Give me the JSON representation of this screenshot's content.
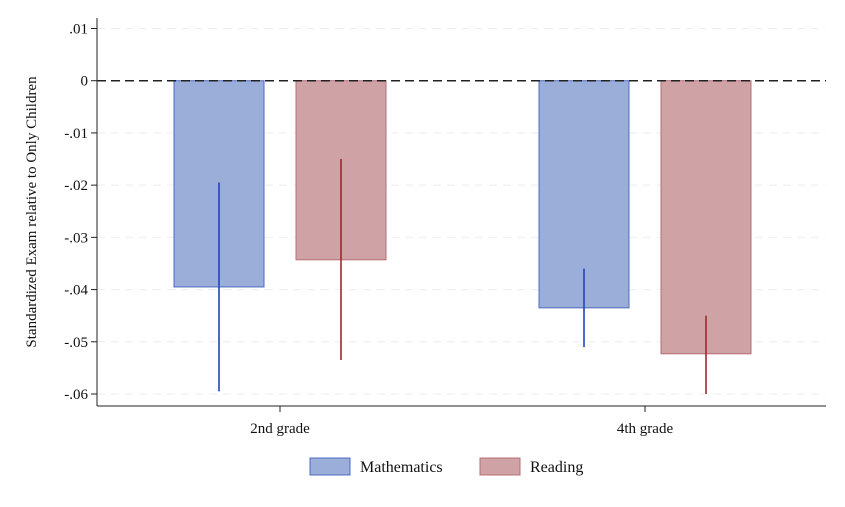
{
  "chart_data": {
    "type": "bar",
    "title": "",
    "xlabel": "",
    "ylabel": "Standardized Exam relative to Only Children",
    "ylim": [
      -0.062,
      0.012
    ],
    "yticks": [
      0.01,
      0,
      -0.01,
      -0.02,
      -0.03,
      -0.04,
      -0.05,
      -0.06
    ],
    "ytick_labels": [
      ".01",
      "0",
      "-.01",
      "-.02",
      "-.03",
      "-.04",
      "-.05",
      "-.06"
    ],
    "categories": [
      "2nd grade",
      "4th grade"
    ],
    "series": [
      {
        "name": "Mathematics",
        "values": [
          -0.0395,
          -0.0435
        ],
        "ci_low": [
          -0.0595,
          -0.051
        ],
        "ci_high": [
          -0.0195,
          -0.036
        ],
        "fill": "#9badd9",
        "stroke": "#4e6cc3",
        "ci_color": "#1f44b8"
      },
      {
        "name": "Reading",
        "values": [
          -0.0343,
          -0.0523
        ],
        "ci_low": [
          -0.0535,
          -0.06
        ],
        "ci_high": [
          -0.015,
          -0.045
        ],
        "fill": "#cfa2a6",
        "stroke": "#b56e75",
        "ci_color": "#a3262e"
      }
    ],
    "reference_line": 0,
    "grid": true,
    "legend_position": "bottom"
  }
}
